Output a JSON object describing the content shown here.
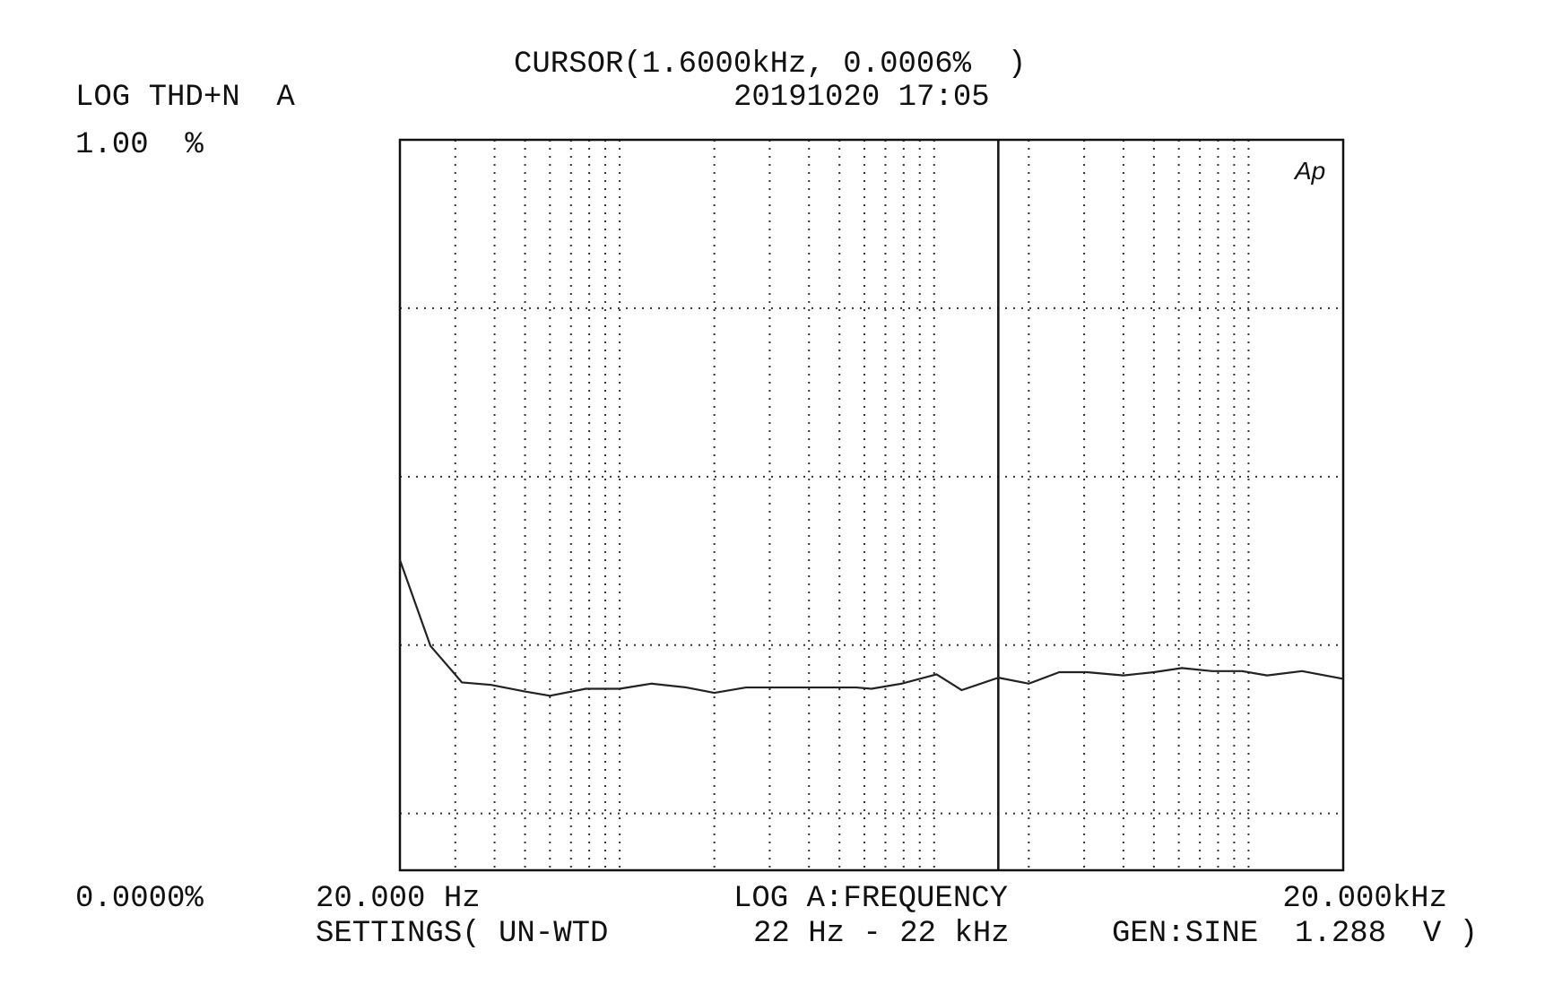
{
  "chart_data": {
    "type": "line",
    "title": "LOG THD+N  A",
    "cursor": {
      "label": "CURSOR(1.6000kHz, 0.0006%  )",
      "x": 1600
    },
    "timestamp": "20191020 17:05",
    "x_label": "LOG A:FREQUENCY",
    "settings": [
      "SETTINGS( UN-WTD",
      "22 Hz - 22 kHz",
      "GEN:SINE  1.288  V )"
    ],
    "logo": "Ap",
    "xlog": true,
    "ylog": true,
    "xlim": [
      20,
      20000
    ],
    "ylim": [
      4.6e-05,
      1
    ],
    "xticks": [
      {
        "value": 20,
        "label": "20.000 Hz"
      },
      {
        "value": 20000,
        "label": "20.000kHz"
      }
    ],
    "yticks": [
      {
        "value": 4.6e-05,
        "label": "0.0000%"
      },
      {
        "value": 1,
        "label": "1.00  %"
      }
    ],
    "xgrid": [
      30,
      40,
      50,
      60,
      70,
      80,
      90,
      100,
      200,
      300,
      400,
      500,
      600,
      700,
      800,
      900,
      1000,
      2000,
      3000,
      4000,
      5000,
      6000,
      7000,
      8000,
      9000,
      10000
    ],
    "ygrid": [
      0.1,
      0.01,
      0.001,
      0.0001
    ],
    "series": [
      {
        "color": "#222222",
        "x": [
          20,
          25,
          31.5,
          39,
          50,
          60,
          78,
          100,
          126,
          163,
          200,
          252,
          327,
          438,
          566,
          632,
          788,
          1018,
          1224,
          1600,
          2000,
          2500,
          3060,
          4000,
          5000,
          6140,
          7650,
          9530,
          11460,
          14800,
          20000
        ],
        "values": [
          0.0032,
          0.00099,
          0.0006,
          0.00058,
          0.00053,
          0.0005,
          0.00055,
          0.00055,
          0.00059,
          0.00056,
          0.00052,
          0.00056,
          0.00056,
          0.00056,
          0.00056,
          0.00055,
          0.00059,
          0.00067,
          0.00054,
          0.00064,
          0.00059,
          0.00069,
          0.00069,
          0.00066,
          0.00069,
          0.00073,
          0.0007,
          0.0007,
          0.00066,
          0.0007,
          0.00063
        ]
      }
    ]
  }
}
